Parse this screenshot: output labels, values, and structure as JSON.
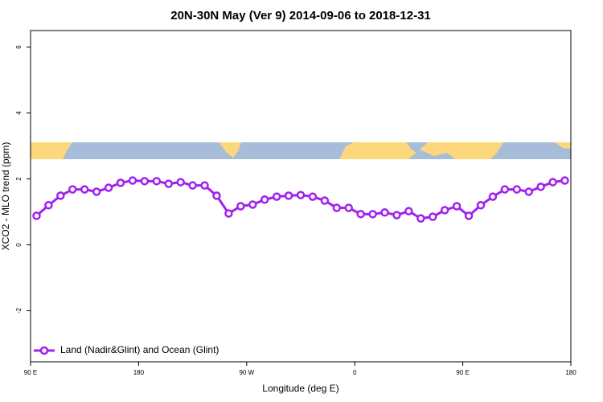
{
  "chart_data": {
    "type": "line",
    "title": "20N-30N May (Ver 9)   2014-09-06 to 2018-12-31",
    "xlabel": "Longitude (deg E)",
    "ylabel": "XCO2 - MLO trend (ppm)",
    "xlim": [
      90,
      540
    ],
    "xticks": [
      {
        "value": 90,
        "label": "90 E"
      },
      180,
      {
        "value": 270,
        "label": "90 W"
      },
      {
        "value": 360,
        "label": "0"
      },
      {
        "value": 450,
        "label": "90 E"
      },
      {
        "value": 540,
        "label": "180"
      }
    ],
    "ylim": [
      -3.55,
      6.5
    ],
    "yticks": [
      -2,
      0,
      2,
      4,
      6
    ],
    "legend": "bottom left",
    "x": [
      95,
      105,
      115,
      125,
      135,
      145,
      155,
      165,
      175,
      185,
      195,
      205,
      215,
      225,
      235,
      245,
      255,
      265,
      275,
      285,
      295,
      305,
      315,
      325,
      335,
      345,
      355,
      365,
      375,
      385,
      395,
      405,
      415,
      425,
      435,
      445,
      455,
      465,
      475,
      485,
      495,
      505,
      515,
      525,
      535
    ],
    "series": [
      {
        "name": "Land (Nadir&Glint) and Ocean (Glint)",
        "color": "#a020f0",
        "values": [
          0.88,
          1.2,
          1.49,
          1.68,
          1.68,
          1.61,
          1.73,
          1.88,
          1.95,
          1.93,
          1.93,
          1.85,
          1.9,
          1.8,
          1.8,
          1.49,
          0.95,
          1.17,
          1.22,
          1.37,
          1.46,
          1.49,
          1.51,
          1.46,
          1.34,
          1.12,
          1.12,
          0.93,
          0.93,
          0.98,
          0.9,
          1.02,
          0.8,
          0.85,
          1.05,
          1.17,
          0.88,
          1.2,
          1.46,
          1.68,
          1.68,
          1.61,
          1.76,
          1.9,
          1.95
        ]
      }
    ]
  }
}
